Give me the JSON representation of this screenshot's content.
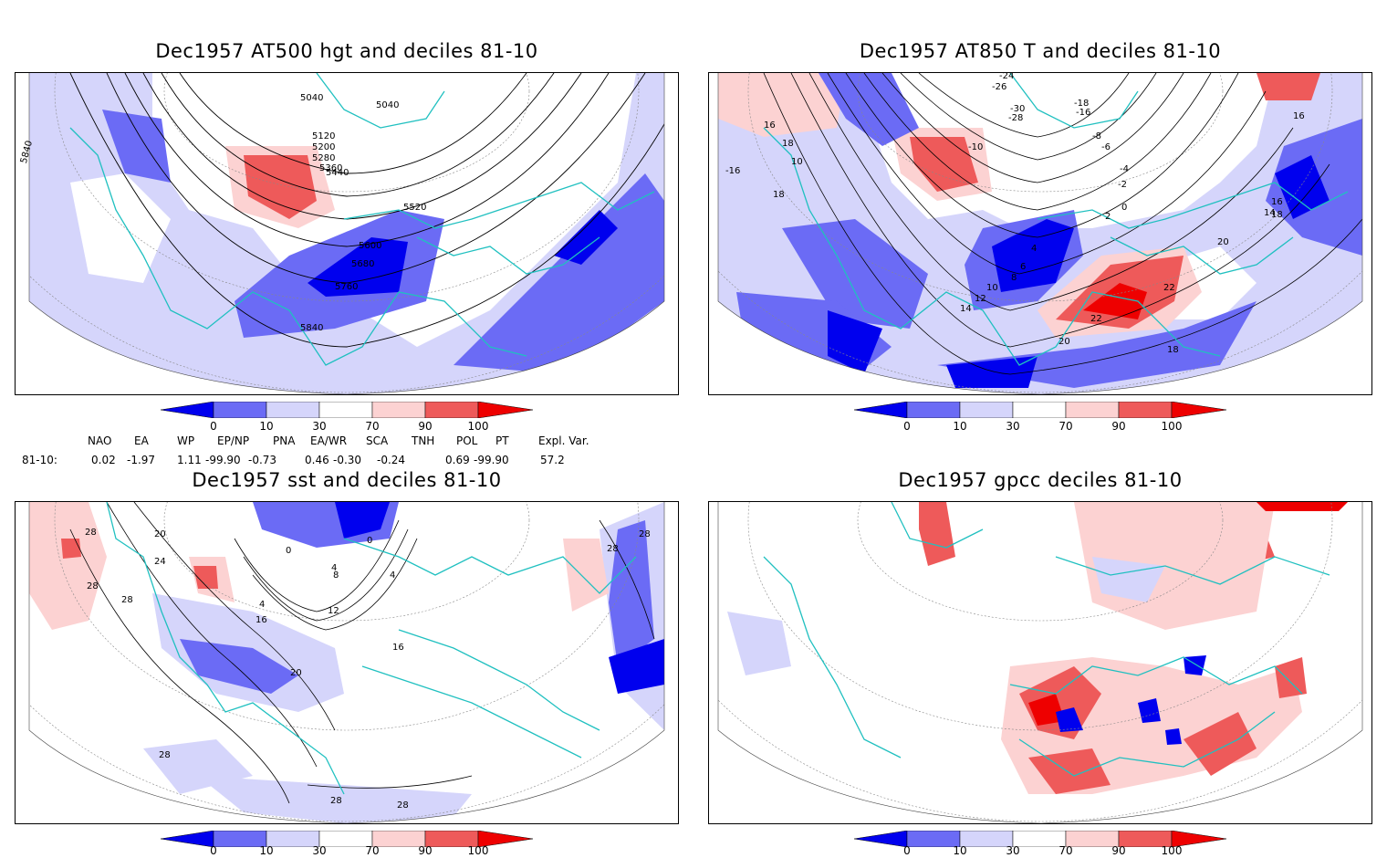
{
  "panels": [
    {
      "title": "Dec1957 AT500 hgt and deciles 81-10",
      "contour_labels": [
        "5040",
        "5040",
        "5120",
        "5200",
        "5280",
        "5360",
        "5440",
        "5520",
        "5600",
        "5680",
        "5760",
        "5840",
        "5840"
      ]
    },
    {
      "title": "Dec1957 AT850 T and deciles 81-10",
      "contour_labels": [
        "-24",
        "-26",
        "-18",
        "-30",
        "-16",
        "-28",
        "-10",
        "-8",
        "-6",
        "-4",
        "-2",
        "0",
        "2",
        "4",
        "6",
        "8",
        "10",
        "12",
        "14",
        "16",
        "16",
        "18",
        "18",
        "20",
        "20",
        "22",
        "22",
        "14",
        "18",
        "-16",
        "10",
        "16",
        "18"
      ]
    },
    {
      "title": "Dec1957 sst and deciles 81-10",
      "contour_labels": [
        "28",
        "20",
        "24",
        "28",
        "28",
        "0",
        "4",
        "8",
        "4",
        "0",
        "4",
        "12",
        "16",
        "16",
        "20",
        "28",
        "28",
        "28",
        "28",
        "28"
      ]
    },
    {
      "title": "Dec1957 gpcc deciles 81-10",
      "contour_labels": []
    }
  ],
  "colorbar": {
    "labels": [
      "0",
      "10",
      "30",
      "70",
      "90",
      "100"
    ],
    "colors": {
      "dark_blue": "#0000ee",
      "mid_blue": "#6b6bf5",
      "light_blue": "#d5d5fb",
      "white": "#ffffff",
      "light_red": "#fcd2d2",
      "mid_red": "#ee5a5a",
      "dark_red": "#ee0000"
    }
  },
  "indices": {
    "headers": [
      "NAO",
      "EA",
      "WP",
      "EP/NP",
      "PNA",
      "EA/WR",
      "SCA",
      "TNH",
      "POL",
      "PT",
      "Expl. Var."
    ],
    "row_label": "81-10:",
    "values": [
      "0.02",
      "-1.97",
      "1.11",
      "-99.90",
      "-0.73",
      "0.46",
      "-0.30",
      "-0.24",
      "0.69",
      "-99.90",
      "57.2"
    ]
  },
  "map_colors": {
    "coast": "#20c0c0",
    "grid": "#888888",
    "contour": "#000000"
  }
}
